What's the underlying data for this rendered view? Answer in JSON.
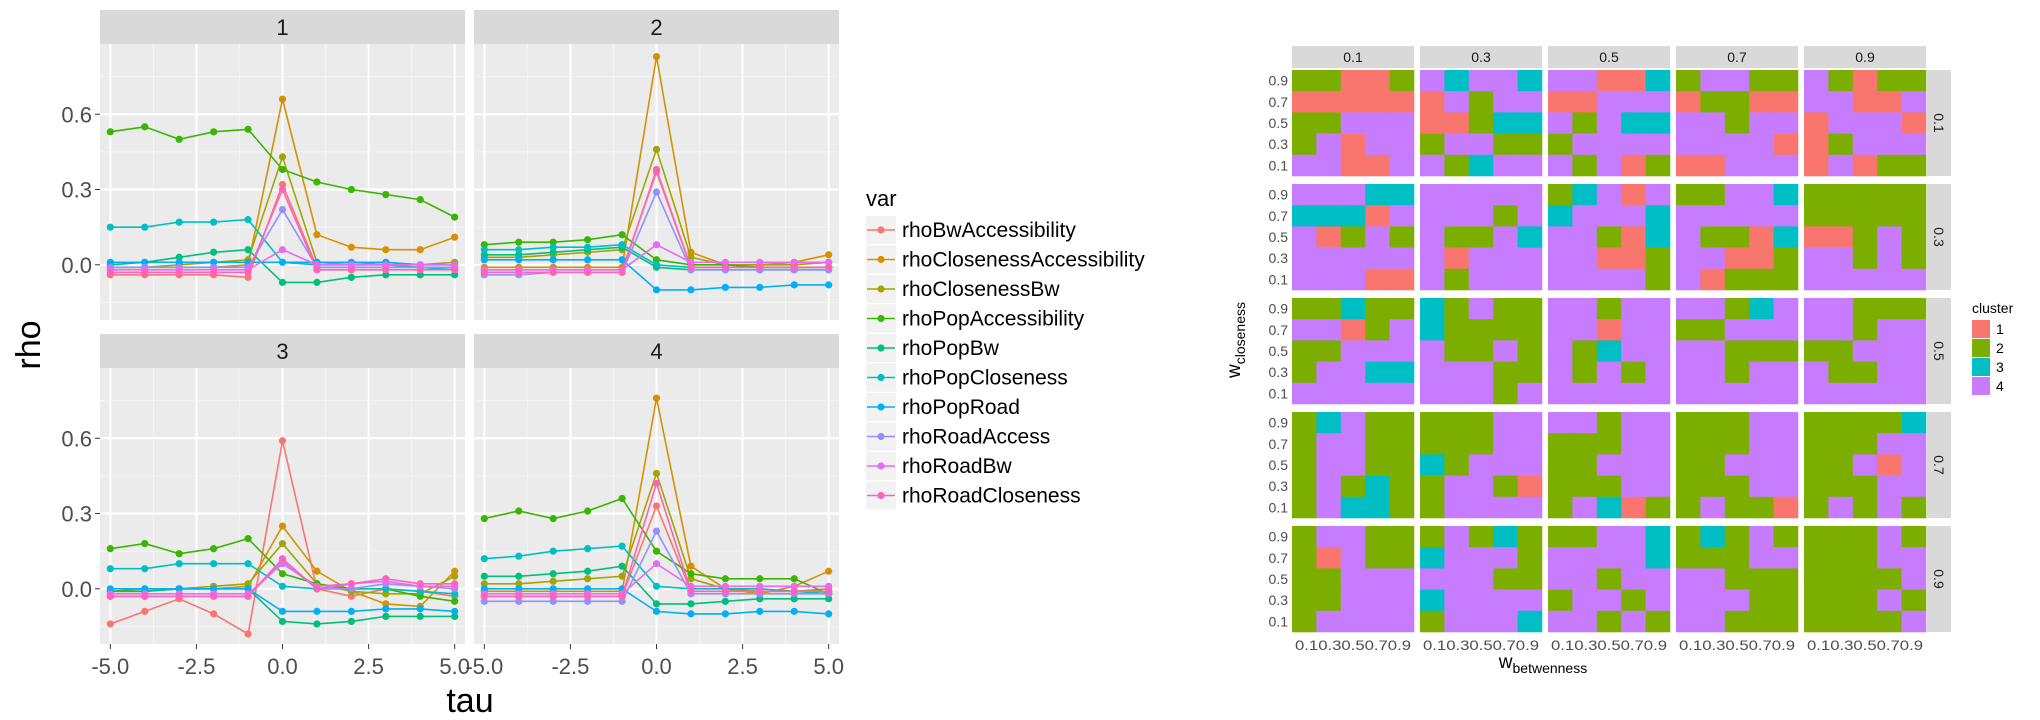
{
  "chart_data": [
    {
      "type": "line",
      "xlabel": "tau",
      "ylabel": "rho",
      "xticks": [
        "-5.0",
        "-2.5",
        "0.0",
        "2.5",
        "5.0"
      ],
      "yticks": [
        "0.0",
        "0.3",
        "0.6"
      ],
      "xlim": [
        -5.3,
        5.3
      ],
      "ylim": [
        -0.22,
        0.88
      ],
      "grid": true,
      "legend_title": "var",
      "legend_position": "right",
      "series_names": [
        "rhoBwAccessibility",
        "rhoClosenessAccessibility",
        "rhoClosenessBw",
        "rhoPopAccessibility",
        "rhoPopBw",
        "rhoPopCloseness",
        "rhoPopRoad",
        "rhoRoadAccess",
        "rhoRoadBw",
        "rhoRoadCloseness"
      ],
      "series_colors": [
        "#F8766D",
        "#D89000",
        "#A3A500",
        "#39B600",
        "#00BF7D",
        "#00BFC4",
        "#00B0F6",
        "#9590FF",
        "#E76BF3",
        "#FF62BC"
      ],
      "x": [
        -5,
        -4,
        -3,
        -2,
        -1,
        0,
        1,
        2,
        3,
        4,
        5
      ],
      "panels": [
        {
          "label": "1",
          "series": [
            {
              "values": [
                -0.04,
                -0.04,
                -0.04,
                -0.04,
                -0.05,
                0.32,
                -0.01,
                -0.01,
                -0.01,
                -0.01,
                -0.01
              ]
            },
            {
              "values": [
                -0.01,
                -0.01,
                -0.01,
                -0.01,
                0.0,
                0.66,
                0.12,
                0.07,
                0.06,
                0.06,
                0.11
              ]
            },
            {
              "values": [
                -0.01,
                -0.01,
                0.0,
                0.01,
                0.02,
                0.43,
                0.01,
                0.0,
                0.01,
                0.0,
                0.01
              ]
            },
            {
              "values": [
                0.53,
                0.55,
                0.5,
                0.53,
                0.54,
                0.38,
                0.33,
                0.3,
                0.28,
                0.26,
                0.19
              ]
            },
            {
              "values": [
                0.0,
                0.01,
                0.03,
                0.05,
                0.06,
                -0.07,
                -0.07,
                -0.05,
                -0.04,
                -0.04,
                -0.04
              ]
            },
            {
              "values": [
                0.15,
                0.15,
                0.17,
                0.17,
                0.18,
                0.01,
                0.0,
                0.0,
                0.0,
                -0.01,
                -0.02
              ]
            },
            {
              "values": [
                0.01,
                0.01,
                0.01,
                0.01,
                0.01,
                0.01,
                0.01,
                0.01,
                0.01,
                0.0,
                0.0
              ]
            },
            {
              "values": [
                -0.01,
                -0.01,
                -0.01,
                -0.01,
                -0.01,
                0.22,
                -0.01,
                -0.01,
                -0.01,
                -0.01,
                -0.01
              ]
            },
            {
              "values": [
                -0.02,
                -0.02,
                -0.02,
                -0.02,
                -0.02,
                0.06,
                0.0,
                0.0,
                0.0,
                0.0,
                0.0
              ]
            },
            {
              "values": [
                -0.03,
                -0.03,
                -0.03,
                -0.03,
                -0.03,
                0.3,
                -0.02,
                -0.02,
                -0.02,
                -0.02,
                -0.02
              ]
            }
          ]
        },
        {
          "label": "2",
          "series": [
            {
              "values": [
                -0.02,
                -0.02,
                -0.02,
                -0.02,
                -0.02,
                0.37,
                -0.01,
                -0.01,
                -0.01,
                -0.01,
                -0.01
              ]
            },
            {
              "values": [
                -0.01,
                -0.01,
                -0.01,
                -0.01,
                -0.01,
                0.83,
                0.05,
                0.0,
                0.0,
                0.01,
                0.04
              ]
            },
            {
              "values": [
                0.03,
                0.03,
                0.04,
                0.05,
                0.06,
                0.46,
                0.03,
                0.0,
                0.0,
                0.0,
                0.01
              ]
            },
            {
              "values": [
                0.08,
                0.09,
                0.09,
                0.1,
                0.12,
                0.02,
                0.0,
                0.0,
                -0.01,
                -0.01,
                -0.01
              ]
            },
            {
              "values": [
                0.04,
                0.04,
                0.05,
                0.06,
                0.07,
                -0.01,
                -0.02,
                -0.02,
                -0.02,
                -0.02,
                -0.02
              ]
            },
            {
              "values": [
                0.06,
                0.06,
                0.07,
                0.07,
                0.08,
                0.0,
                -0.01,
                -0.01,
                -0.01,
                -0.01,
                -0.01
              ]
            },
            {
              "values": [
                0.02,
                0.02,
                0.02,
                0.02,
                0.02,
                -0.1,
                -0.1,
                -0.09,
                -0.09,
                -0.08,
                -0.08
              ]
            },
            {
              "values": [
                -0.04,
                -0.04,
                -0.03,
                -0.03,
                -0.03,
                0.29,
                -0.02,
                -0.02,
                -0.02,
                -0.02,
                -0.02
              ]
            },
            {
              "values": [
                -0.02,
                -0.02,
                -0.02,
                -0.02,
                -0.02,
                0.08,
                0.01,
                0.01,
                0.01,
                0.01,
                0.01
              ]
            },
            {
              "values": [
                -0.03,
                -0.03,
                -0.03,
                -0.03,
                -0.03,
                0.38,
                -0.01,
                -0.01,
                -0.01,
                -0.01,
                -0.01
              ]
            }
          ]
        },
        {
          "label": "3",
          "series": [
            {
              "values": [
                -0.14,
                -0.09,
                -0.04,
                -0.1,
                -0.18,
                0.59,
                0.0,
                -0.03,
                0.0,
                -0.01,
                -0.03
              ]
            },
            {
              "values": [
                -0.01,
                -0.01,
                0.0,
                0.0,
                0.01,
                0.25,
                0.07,
                -0.01,
                -0.06,
                -0.07,
                0.07
              ]
            },
            {
              "values": [
                -0.01,
                0.0,
                0.0,
                0.01,
                0.02,
                0.18,
                0.02,
                -0.01,
                -0.02,
                -0.02,
                0.05
              ]
            },
            {
              "values": [
                0.16,
                0.18,
                0.14,
                0.16,
                0.2,
                0.06,
                0.02,
                0.0,
                0.0,
                -0.03,
                -0.05
              ]
            },
            {
              "values": [
                -0.01,
                -0.01,
                0.0,
                0.0,
                0.0,
                -0.13,
                -0.14,
                -0.13,
                -0.11,
                -0.11,
                -0.11
              ]
            },
            {
              "values": [
                0.08,
                0.08,
                0.1,
                0.1,
                0.1,
                0.01,
                0.0,
                0.0,
                0.0,
                -0.01,
                -0.02
              ]
            },
            {
              "values": [
                0.0,
                0.0,
                0.0,
                0.0,
                0.0,
                -0.09,
                -0.09,
                -0.09,
                -0.08,
                -0.08,
                -0.09
              ]
            },
            {
              "values": [
                -0.03,
                -0.03,
                -0.03,
                -0.03,
                -0.03,
                0.11,
                0.0,
                0.0,
                0.02,
                0.01,
                0.0
              ]
            },
            {
              "values": [
                -0.02,
                -0.02,
                -0.02,
                -0.02,
                -0.02,
                0.1,
                0.01,
                0.02,
                0.03,
                0.01,
                0.01
              ]
            },
            {
              "values": [
                -0.03,
                -0.03,
                -0.03,
                -0.03,
                -0.03,
                0.12,
                0.0,
                0.02,
                0.04,
                0.02,
                0.02
              ]
            }
          ]
        },
        {
          "label": "4",
          "series": [
            {
              "values": [
                -0.03,
                -0.03,
                -0.03,
                -0.03,
                -0.03,
                0.33,
                -0.01,
                -0.01,
                -0.01,
                -0.01,
                -0.01
              ]
            },
            {
              "values": [
                -0.01,
                -0.01,
                -0.01,
                -0.01,
                -0.01,
                0.76,
                0.09,
                0.0,
                -0.02,
                0.01,
                0.07
              ]
            },
            {
              "values": [
                0.02,
                0.02,
                0.03,
                0.04,
                0.05,
                0.46,
                0.04,
                0.0,
                -0.01,
                -0.01,
                0.0
              ]
            },
            {
              "values": [
                0.28,
                0.31,
                0.28,
                0.31,
                0.36,
                0.15,
                0.06,
                0.04,
                0.04,
                0.04,
                -0.02
              ]
            },
            {
              "values": [
                0.05,
                0.05,
                0.06,
                0.07,
                0.09,
                -0.06,
                -0.06,
                -0.05,
                -0.04,
                -0.04,
                -0.04
              ]
            },
            {
              "values": [
                0.12,
                0.13,
                0.15,
                0.16,
                0.17,
                0.01,
                0.0,
                0.0,
                0.0,
                -0.01,
                -0.02
              ]
            },
            {
              "values": [
                0.0,
                0.0,
                0.0,
                0.0,
                0.0,
                -0.09,
                -0.1,
                -0.1,
                -0.09,
                -0.09,
                -0.1
              ]
            },
            {
              "values": [
                -0.05,
                -0.05,
                -0.05,
                -0.05,
                -0.05,
                0.23,
                -0.02,
                -0.02,
                -0.02,
                -0.02,
                -0.02
              ]
            },
            {
              "values": [
                -0.02,
                -0.02,
                -0.02,
                -0.02,
                -0.02,
                0.1,
                0.01,
                0.01,
                0.01,
                0.01,
                0.01
              ]
            },
            {
              "values": [
                -0.03,
                -0.03,
                -0.03,
                -0.03,
                -0.03,
                0.42,
                -0.01,
                -0.01,
                -0.01,
                -0.01,
                -0.01
              ]
            }
          ]
        }
      ]
    },
    {
      "type": "heatmap",
      "xlabel_base": "w",
      "xlabel_sub": "betwenness",
      "ylabel_base": "w",
      "ylabel_sub": "closeness",
      "cell_ticks": [
        "0.1",
        "0.3",
        "0.5",
        "0.7",
        "0.9"
      ],
      "xtick_text": "0.10.30.50.70.9",
      "column_facets": [
        "0.1",
        "0.3",
        "0.5",
        "0.7",
        "0.9"
      ],
      "row_facets": [
        "0.1",
        "0.3",
        "0.5",
        "0.7",
        "0.9"
      ],
      "legend_title": "cluster",
      "legend_position": "right",
      "clusters": [
        {
          "label": "1",
          "color": "#F8766D"
        },
        {
          "label": "2",
          "color": "#7CAE00"
        },
        {
          "label": "3",
          "color": "#00BFC4"
        },
        {
          "label": "4",
          "color": "#C77CFF"
        }
      ],
      "panel_grid_rows_top_to_bottom_y": [
        "0.9",
        "0.7",
        "0.5",
        "0.3",
        "0.1"
      ],
      "panels": [
        [
          "22112",
          "11111",
          "22444",
          "24144",
          "44114"
        ],
        [
          "43443",
          "14244",
          "11233",
          "24422",
          "42344"
        ],
        [
          "44113",
          "11444",
          "42433",
          "24444",
          "42412"
        ],
        [
          "24422",
          "12211",
          "44244",
          "44441",
          "11444"
        ],
        [
          "42122",
          "44114",
          "14441",
          "12444",
          "14122"
        ],
        [
          "44433",
          "33314",
          "41242",
          "44444",
          "44411"
        ],
        [
          "44444",
          "44424",
          "42243",
          "41444",
          "42444"
        ],
        [
          "23414",
          "34443",
          "44213",
          "44112",
          "44442"
        ],
        [
          "22443",
          "44444",
          "42213",
          "44112",
          "41222"
        ],
        [
          "22222",
          "22222",
          "11242",
          "44242",
          "44444"
        ],
        [
          "22322",
          "44124",
          "22444",
          "24433",
          "44444"
        ],
        [
          "32422",
          "32222",
          "42242",
          "44422",
          "44424"
        ],
        [
          "44244",
          "44144",
          "42344",
          "42424",
          "44444"
        ],
        [
          "44234",
          "22444",
          "44222",
          "44244",
          "44444"
        ],
        [
          "44222",
          "44244",
          "22444",
          "42244",
          "44444"
        ],
        [
          "23422",
          "24422",
          "24422",
          "24232",
          "24332"
        ],
        [
          "22244",
          "22244",
          "32444",
          "24421",
          "24444"
        ],
        [
          "44244",
          "22244",
          "22444",
          "22244",
          "24312"
        ],
        [
          "22244",
          "22244",
          "22444",
          "22244",
          "24221"
        ],
        [
          "22223",
          "22244",
          "22414",
          "22244",
          "24242"
        ],
        [
          "24422",
          "21422",
          "22444",
          "22444",
          "24444"
        ],
        [
          "24232",
          "34442",
          "44422",
          "34444",
          "24443"
        ],
        [
          "22443",
          "44443",
          "44244",
          "24424",
          "44242"
        ],
        [
          "23242",
          "22244",
          "44222",
          "44422",
          "44222"
        ],
        [
          "22242",
          "22244",
          "22224",
          "22242",
          "22224"
        ]
      ]
    }
  ]
}
